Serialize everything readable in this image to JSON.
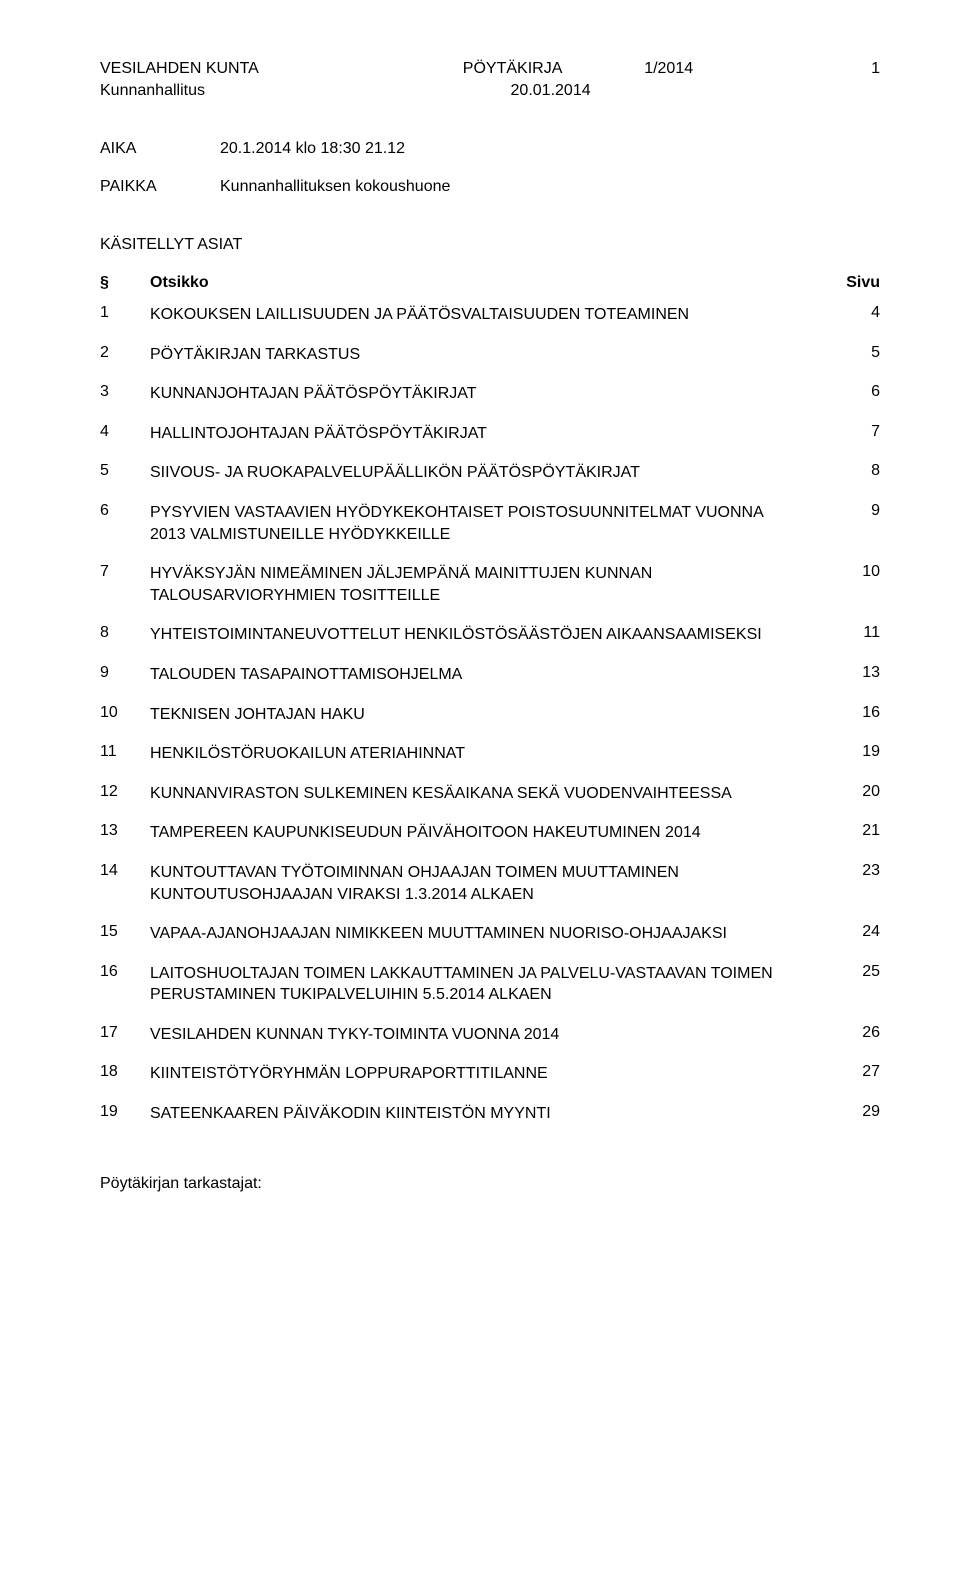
{
  "header": {
    "municipality": "VESILAHDEN KUNTA",
    "doc_type": "PÖYTÄKIRJA",
    "doc_number": "1/2014",
    "page_number": "1",
    "committee": "Kunnanhallitus",
    "date": "20.01.2014"
  },
  "meeting": {
    "aika_label": "AIKA",
    "aika_value": "20.1.2014 klo 18:30  21.12",
    "paikka_label": "PAIKKA",
    "paikka_value": "Kunnanhallituksen kokoushuone"
  },
  "section_title": "KÄSITELLYT ASIAT",
  "toc_header": {
    "num": "§",
    "title": "Otsikko",
    "page": "Sivu"
  },
  "toc": [
    {
      "num": "1",
      "title": "KOKOUKSEN LAILLISUUDEN JA PÄÄTÖSVALTAISUUDEN TOTEAMINEN",
      "page": "4"
    },
    {
      "num": "2",
      "title": "PÖYTÄKIRJAN TARKASTUS",
      "page": "5"
    },
    {
      "num": "3",
      "title": "KUNNANJOHTAJAN PÄÄTÖSPÖYTÄKIRJAT",
      "page": "6"
    },
    {
      "num": "4",
      "title": "HALLINTOJOHTAJAN PÄÄTÖSPÖYTÄKIRJAT",
      "page": "7"
    },
    {
      "num": "5",
      "title": "SIIVOUS- JA RUOKAPALVELUPÄÄLLIKÖN PÄÄTÖSPÖYTÄKIRJAT",
      "page": "8"
    },
    {
      "num": "6",
      "title": "PYSYVIEN VASTAAVIEN HYÖDYKEKOHTAISET POISTOSUUNNITELMAT VUONNA 2013 VALMISTUNEILLE HYÖDYKKEILLE",
      "page": "9"
    },
    {
      "num": "7",
      "title": "HYVÄKSYJÄN NIMEÄMINEN JÄLJEMPÄNÄ MAINITTUJEN KUNNAN TALOUSARVIORYHMIEN TOSITTEILLE",
      "page": "10"
    },
    {
      "num": "8",
      "title": "YHTEISTOIMINTANEUVOTTELUT HENKILÖSTÖSÄÄSTÖJEN AIKAANSAAMISEKSI",
      "page": "11"
    },
    {
      "num": "9",
      "title": "TALOUDEN TASAPAINOTTAMISOHJELMA",
      "page": "13"
    },
    {
      "num": "10",
      "title": "TEKNISEN JOHTAJAN HAKU",
      "page": "16"
    },
    {
      "num": "11",
      "title": "HENKILÖSTÖRUOKAILUN ATERIAHINNAT",
      "page": "19"
    },
    {
      "num": "12",
      "title": "KUNNANVIRASTON SULKEMINEN KESÄAIKANA SEKÄ VUODENVAIHTEESSA",
      "page": "20"
    },
    {
      "num": "13",
      "title": "TAMPEREEN KAUPUNKISEUDUN PÄIVÄHOITOON HAKEUTUMINEN 2014",
      "page": "21"
    },
    {
      "num": "14",
      "title": "KUNTOUTTAVAN TYÖTOIMINNAN OHJAAJAN TOIMEN MUUTTAMINEN KUNTOUTUSOHJAAJAN VIRAKSI 1.3.2014 ALKAEN",
      "page": "23"
    },
    {
      "num": "15",
      "title": "VAPAA-AJANOHJAAJAN NIMIKKEEN MUUTTAMINEN NUORISO-OHJAAJAKSI",
      "page": "24"
    },
    {
      "num": "16",
      "title": "LAITOSHUOLTAJAN TOIMEN LAKKAUTTAMINEN JA PALVELU-VASTAAVAN TOIMEN PERUSTAMINEN TUKIPALVELUIHIN 5.5.2014 ALKAEN",
      "page": "25"
    },
    {
      "num": "17",
      "title": "VESILAHDEN KUNNAN TYKY-TOIMINTA VUONNA 2014",
      "page": "26"
    },
    {
      "num": "18",
      "title": "KIINTEISTÖTYÖRYHMÄN LOPPURAPORTTITILANNE",
      "page": "27"
    },
    {
      "num": "19",
      "title": "SATEENKAAREN PÄIVÄKODIN KIINTEISTÖN MYYNTI",
      "page": "29"
    }
  ],
  "footer": "Pöytäkirjan tarkastajat:"
}
